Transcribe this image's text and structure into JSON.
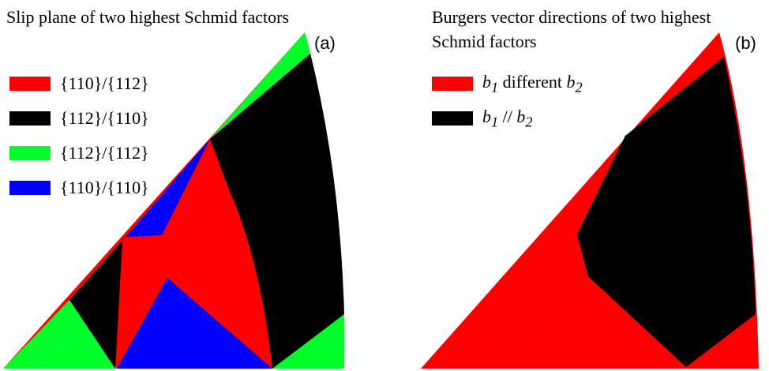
{
  "panel_a": {
    "title": "Slip plane of two highest Schmid factors",
    "label": "(a)",
    "legend": [
      {
        "label": "{110}/{112}",
        "color": "#ff0000"
      },
      {
        "label": "{112}/{110}",
        "color": "#000000"
      },
      {
        "label": "{112}/{112}",
        "color": "#00ff2a"
      },
      {
        "label": "{110}/{110}",
        "color": "#0000ff"
      }
    ]
  },
  "panel_b": {
    "title": "Burgers vector directions of two highest\nSchmid factors",
    "label": "(b)",
    "legend": [
      {
        "sym1": "b",
        "sub1": "1",
        "mid": " different ",
        "sym2": "b",
        "sub2": "2",
        "color": "#ff0000"
      },
      {
        "sym1": "b",
        "sub1": "1",
        "mid": " // ",
        "sym2": "b",
        "sub2": "2",
        "color": "#000000"
      }
    ]
  },
  "colors": {
    "red": "#ff0000",
    "black": "#000000",
    "green": "#00ff2a",
    "blue": "#0000ff"
  }
}
